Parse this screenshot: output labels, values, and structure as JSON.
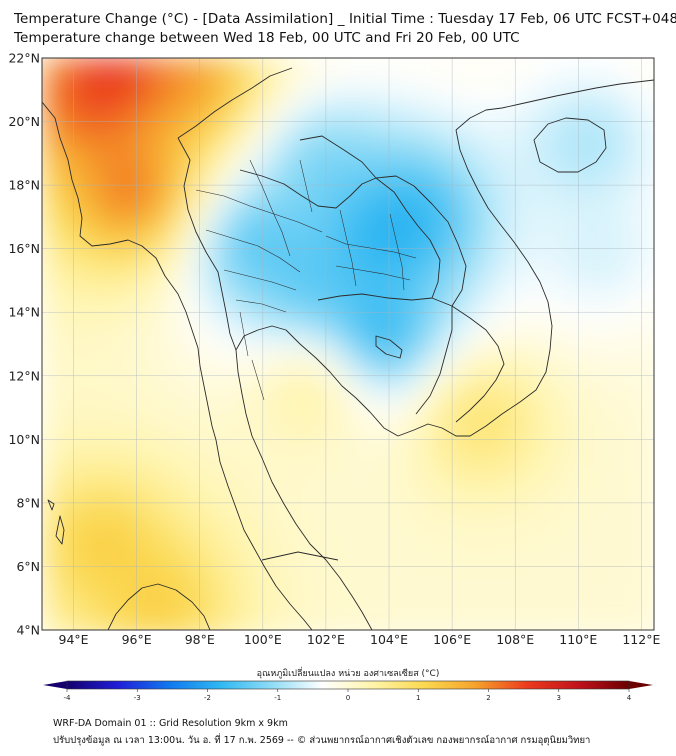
{
  "header": {
    "title_line1": "Temperature Change (°C) - [Data Assimilation] _ Initial Time : Tuesday 17 Feb, 06 UTC FCST+048",
    "title_line2": "Temperature change between Wed 18 Feb, 00 UTC and Fri 20 Feb, 00 UTC"
  },
  "map": {
    "lat_range": [
      4,
      22
    ],
    "lon_range": [
      93,
      112.4
    ],
    "lat_ticks": [
      {
        "value": 22,
        "label": "22°N"
      },
      {
        "value": 20,
        "label": "20°N"
      },
      {
        "value": 18,
        "label": "18°N"
      },
      {
        "value": 16,
        "label": "16°N"
      },
      {
        "value": 14,
        "label": "14°N"
      },
      {
        "value": 12,
        "label": "12°N"
      },
      {
        "value": 10,
        "label": "10°N"
      },
      {
        "value": 8,
        "label": "8°N"
      },
      {
        "value": 6,
        "label": "6°N"
      },
      {
        "value": 4,
        "label": "4°N"
      }
    ],
    "lon_ticks": [
      {
        "value": 94,
        "label": "94°E"
      },
      {
        "value": 96,
        "label": "96°E"
      },
      {
        "value": 98,
        "label": "98°E"
      },
      {
        "value": 100,
        "label": "100°E"
      },
      {
        "value": 102,
        "label": "102°E"
      },
      {
        "value": 104,
        "label": "104°E"
      },
      {
        "value": 106,
        "label": "106°E"
      },
      {
        "value": 108,
        "label": "108°E"
      },
      {
        "value": 110,
        "label": "110°E"
      },
      {
        "value": 112,
        "label": "112°E"
      }
    ],
    "temperature_anomalies": [
      {
        "region": "far-north-west warm core",
        "lon": 95.3,
        "lat": 21.7,
        "value": 3.6
      },
      {
        "region": "north-west warm",
        "lon": 94.3,
        "lat": 20.6,
        "value": 2.8
      },
      {
        "region": "north warm",
        "lon": 97.7,
        "lat": 21.3,
        "value": 2.4
      },
      {
        "region": "myanmar warm spot",
        "lon": 95.9,
        "lat": 17.8,
        "value": 2.9
      },
      {
        "region": "northern laos cool",
        "lon": 101.8,
        "lat": 18.6,
        "value": -1.6
      },
      {
        "region": "northern thailand cool",
        "lon": 99.7,
        "lat": 16.2,
        "value": -2.1
      },
      {
        "region": "isan cool",
        "lon": 103.7,
        "lat": 16.4,
        "value": -2.4
      },
      {
        "region": "laos cool",
        "lon": 104.8,
        "lat": 17.0,
        "value": -2.3
      },
      {
        "region": "cambodia cool core",
        "lon": 103.6,
        "lat": 13.3,
        "value": -2.7
      },
      {
        "region": "central thailand cool",
        "lon": 101.5,
        "lat": 14.7,
        "value": -1.9
      },
      {
        "region": "hainan cool",
        "lon": 110.3,
        "lat": 19.3,
        "value": -1.2
      },
      {
        "region": "south china sea cool",
        "lon": 110.7,
        "lat": 15.8,
        "value": -0.8
      },
      {
        "region": "gulf of thailand warm",
        "lon": 101.7,
        "lat": 11.9,
        "value": 1.0
      },
      {
        "region": "mekong delta warm",
        "lon": 106.8,
        "lat": 10.7,
        "value": 1.2
      },
      {
        "region": "andaman sea warm",
        "lon": 94.9,
        "lat": 6.7,
        "value": 1.6
      },
      {
        "region": "south west warm",
        "lon": 96.7,
        "lat": 4.8,
        "value": 1.6
      }
    ]
  },
  "colorbar": {
    "title": "อุณหภูมิเปลี่ยนแปลง หน่วย องศาเซลเซียส (°C)",
    "min": -4,
    "max": 4,
    "ticks": [
      {
        "value": -4,
        "label": "-4"
      },
      {
        "value": -3,
        "label": "-3"
      },
      {
        "value": -2,
        "label": "-2"
      },
      {
        "value": -1,
        "label": "-1"
      },
      {
        "value": 0,
        "label": "0"
      },
      {
        "value": 1,
        "label": "1"
      },
      {
        "value": 2,
        "label": "2"
      },
      {
        "value": 3,
        "label": "3"
      },
      {
        "value": 4,
        "label": "4"
      }
    ],
    "colors": [
      "#16006e",
      "#1f1fd8",
      "#1178ef",
      "#2fb8f2",
      "#8fdcf6",
      "#ffffff",
      "#fff4a8",
      "#fbd84f",
      "#f6a22c",
      "#ec3b1d",
      "#c1121c",
      "#6b0000"
    ]
  },
  "footer": {
    "line1": "WRF-DA Domain 01 :: Grid Resolution 9km x 9km",
    "line2": "ปรับปรุงข้อมูล ณ เวลา 13:00น. วัน อ. ที่ 17 ก.พ. 2569 -- © ส่วนพยากรณ์อากาศเชิงตัวเลข กองพยากรณ์อากาศ กรมอุตุนิยมวิทยา"
  }
}
